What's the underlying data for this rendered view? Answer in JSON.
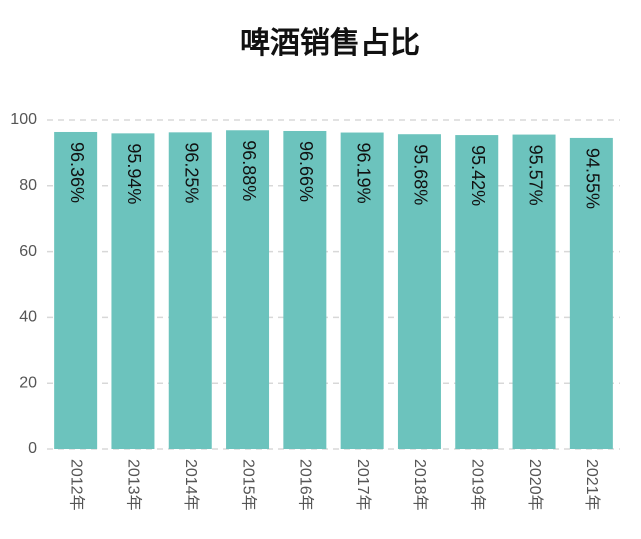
{
  "chart_data": {
    "type": "bar",
    "title": "啤酒销售占比",
    "categories": [
      "2012年",
      "2013年",
      "2014年",
      "2015年",
      "2016年",
      "2017年",
      "2018年",
      "2019年",
      "2020年",
      "2021年"
    ],
    "values": [
      96.36,
      95.94,
      96.25,
      96.88,
      96.66,
      96.19,
      95.68,
      95.42,
      95.57,
      94.55
    ],
    "value_labels": [
      "96.36%",
      "95.94%",
      "96.25%",
      "96.88%",
      "96.66%",
      "96.19%",
      "95.68%",
      "95.42%",
      "95.57%",
      "94.55%"
    ],
    "color": "#6cc3bd",
    "ylim": [
      0,
      100
    ],
    "yticks": [
      0,
      20,
      40,
      60,
      80,
      100
    ],
    "grid": true
  }
}
